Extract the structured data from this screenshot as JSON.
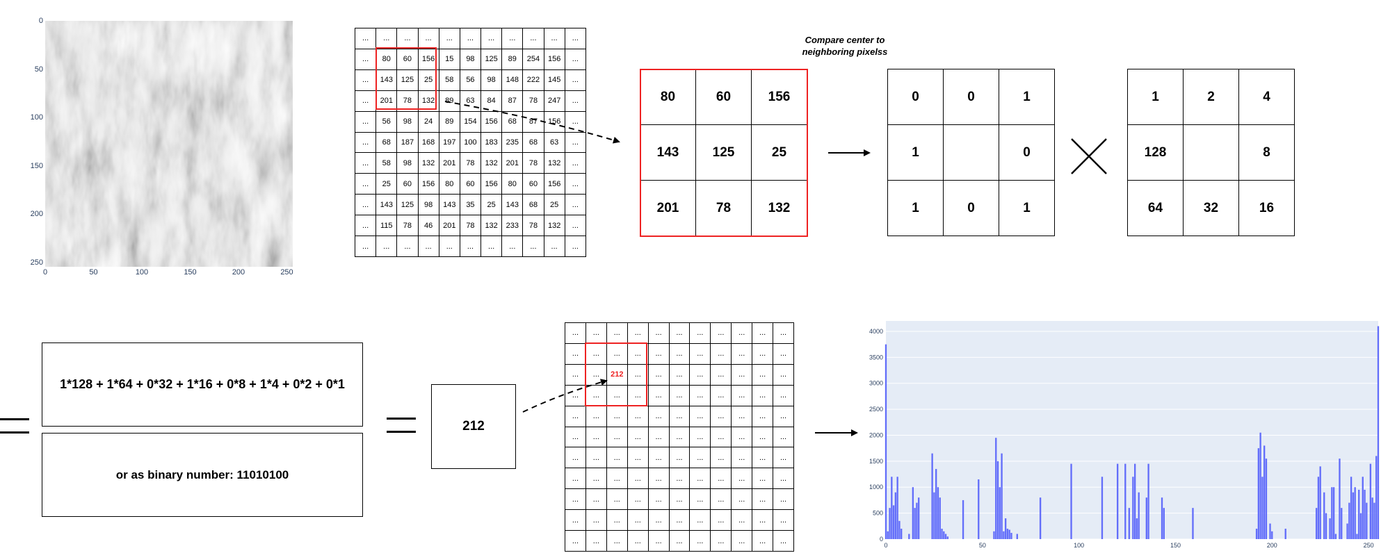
{
  "texture_axes": {
    "y_ticks": [
      "0",
      "50",
      "100",
      "150",
      "200",
      "250"
    ],
    "x_ticks": [
      "0",
      "50",
      "100",
      "150",
      "200",
      "250"
    ]
  },
  "big_matrix": {
    "rows": [
      [
        "...",
        "...",
        "...",
        "...",
        "...",
        "...",
        "...",
        "...",
        "...",
        "...",
        "..."
      ],
      [
        "...",
        "80",
        "60",
        "156",
        "15",
        "98",
        "125",
        "89",
        "254",
        "156",
        "..."
      ],
      [
        "...",
        "143",
        "125",
        "25",
        "58",
        "56",
        "98",
        "148",
        "222",
        "145",
        "..."
      ],
      [
        "...",
        "201",
        "78",
        "132",
        "89",
        "63",
        "84",
        "87",
        "78",
        "247",
        "..."
      ],
      [
        "...",
        "56",
        "98",
        "24",
        "89",
        "154",
        "156",
        "68",
        "87",
        "156",
        "..."
      ],
      [
        "...",
        "68",
        "187",
        "168",
        "197",
        "100",
        "183",
        "235",
        "68",
        "63",
        "..."
      ],
      [
        "...",
        "58",
        "98",
        "132",
        "201",
        "78",
        "132",
        "201",
        "78",
        "132",
        "..."
      ],
      [
        "...",
        "25",
        "60",
        "156",
        "80",
        "60",
        "156",
        "80",
        "60",
        "156",
        "..."
      ],
      [
        "...",
        "143",
        "125",
        "98",
        "143",
        "35",
        "25",
        "143",
        "68",
        "25",
        "..."
      ],
      [
        "...",
        "115",
        "78",
        "46",
        "201",
        "78",
        "132",
        "233",
        "78",
        "132",
        "..."
      ],
      [
        "...",
        "...",
        "...",
        "...",
        "...",
        "...",
        "...",
        "...",
        "...",
        "...",
        "..."
      ]
    ]
  },
  "caption": {
    "line1": "Compare center to",
    "line2": "neighboring pixelss"
  },
  "neighborhood": [
    [
      "80",
      "60",
      "156"
    ],
    [
      "143",
      "125",
      "25"
    ],
    [
      "201",
      "78",
      "132"
    ]
  ],
  "threshold": [
    [
      "0",
      "0",
      "1"
    ],
    [
      "1",
      "",
      "0"
    ],
    [
      "1",
      "0",
      "1"
    ]
  ],
  "weights": [
    [
      "1",
      "2",
      "4"
    ],
    [
      "128",
      "",
      "8"
    ],
    [
      "64",
      "32",
      "16"
    ]
  ],
  "formula": {
    "sum": "1*128 + 1*64 + 0*32 + 1*16 + 0*8 + 1*4 + 0*2 + 0*1",
    "binary": "or as binary number: 11010100"
  },
  "result_value": "212",
  "lbp_grid": {
    "fill": "...",
    "center_value": "212"
  },
  "colors": {
    "highlight": "#ee2222",
    "bar": "#636efa",
    "plot_bg": "#e5ecf6",
    "axis_text": "#2a3f5f"
  },
  "chart_data": {
    "type": "bar",
    "title": "",
    "xlabel": "",
    "ylabel": "",
    "xlim": [
      0,
      255
    ],
    "ylim": [
      0,
      4200
    ],
    "x_ticks": [
      0,
      50,
      100,
      150,
      200,
      250
    ],
    "y_ticks": [
      0,
      500,
      1000,
      1500,
      2000,
      2500,
      3000,
      3500,
      4000
    ],
    "grid": true,
    "bins_x": [
      0,
      1,
      2,
      3,
      4,
      5,
      6,
      7,
      8,
      12,
      14,
      15,
      16,
      17,
      24,
      25,
      26,
      27,
      28,
      29,
      30,
      31,
      32,
      40,
      48,
      56,
      57,
      58,
      59,
      60,
      61,
      62,
      63,
      64,
      65,
      68,
      80,
      96,
      112,
      120,
      124,
      126,
      128,
      129,
      130,
      131,
      135,
      136,
      143,
      144,
      159,
      192,
      193,
      194,
      195,
      196,
      197,
      199,
      200,
      207,
      223,
      224,
      225,
      227,
      228,
      230,
      231,
      232,
      233,
      235,
      236,
      239,
      240,
      241,
      242,
      243,
      244,
      245,
      246,
      247,
      248,
      249,
      251,
      252,
      253,
      254,
      255
    ],
    "values": [
      3750,
      150,
      600,
      1200,
      650,
      900,
      1200,
      350,
      200,
      100,
      1000,
      600,
      700,
      800,
      1650,
      900,
      1350,
      1000,
      800,
      200,
      150,
      100,
      50,
      750,
      1150,
      150,
      1950,
      1500,
      1000,
      1650,
      150,
      400,
      200,
      180,
      120,
      100,
      800,
      1450,
      1200,
      1450,
      1450,
      600,
      1200,
      1450,
      400,
      900,
      800,
      1450,
      800,
      600,
      600,
      200,
      1750,
      2050,
      1200,
      1800,
      1550,
      300,
      150,
      200,
      600,
      1200,
      1400,
      900,
      500,
      400,
      1000,
      1000,
      100,
      1550,
      600,
      300,
      700,
      1200,
      900,
      1000,
      100,
      950,
      500,
      1200,
      950,
      700,
      1450,
      800,
      700,
      1600,
      4100
    ]
  }
}
